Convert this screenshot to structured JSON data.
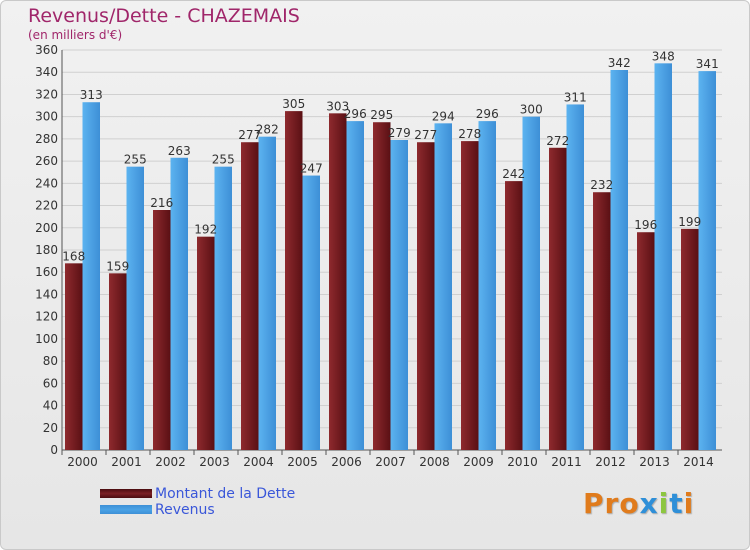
{
  "title": "Revenus/Dette - CHAZEMAIS",
  "subtitle": "(en milliers d'€)",
  "colors": {
    "debt": "#7a1f24",
    "revenue": "#4aa3e6",
    "title": "#a0266a",
    "legend_text": "#3a57d9"
  },
  "legend": {
    "debt_label": "Montant de la Dette",
    "revenue_label": "Revenus"
  },
  "logo": {
    "text": "Proxiti",
    "letter_colors": [
      "#e07b1c",
      "#e07b1c",
      "#e07b1c",
      "#2e8fd8",
      "#8cc63f",
      "#2e8fd8",
      "#e07b1c"
    ]
  },
  "chart_data": {
    "type": "bar",
    "categories": [
      "2000",
      "2001",
      "2002",
      "2003",
      "2004",
      "2005",
      "2006",
      "2007",
      "2008",
      "2009",
      "2010",
      "2011",
      "2012",
      "2013",
      "2014"
    ],
    "series": [
      {
        "name": "Montant de la Dette",
        "values": [
          168,
          159,
          216,
          192,
          277,
          305,
          303,
          295,
          277,
          278,
          242,
          272,
          232,
          196,
          199
        ]
      },
      {
        "name": "Revenus",
        "values": [
          313,
          255,
          263,
          255,
          282,
          247,
          296,
          279,
          294,
          296,
          300,
          311,
          342,
          348,
          341
        ]
      }
    ],
    "ylim": [
      0,
      360
    ],
    "y_ticks": [
      0,
      20,
      40,
      60,
      80,
      100,
      120,
      140,
      160,
      180,
      200,
      220,
      240,
      260,
      280,
      300,
      320,
      340,
      360
    ],
    "grid": true,
    "legend_position": "bottom-left"
  }
}
